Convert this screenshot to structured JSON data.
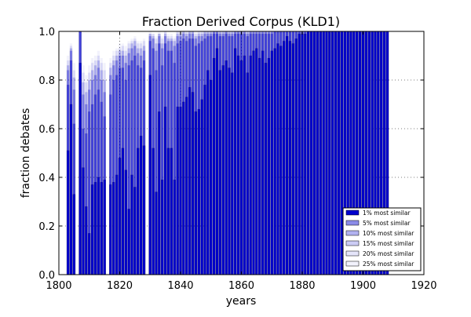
{
  "chart_data": {
    "type": "bar",
    "title": "Fraction Derived Corpus (KLD1)",
    "xlabel": "years",
    "ylabel": "fraction debates",
    "xlim": [
      1800,
      1920
    ],
    "ylim": [
      0.0,
      1.0
    ],
    "xticks": [
      1800,
      1820,
      1840,
      1860,
      1880,
      1900,
      1920
    ],
    "yticks": [
      0.0,
      0.2,
      0.4,
      0.6,
      0.8,
      1.0
    ],
    "xtick_labels": [
      "1800",
      "1820",
      "1840",
      "1860",
      "1880",
      "1900",
      "1920"
    ],
    "ytick_labels": [
      "0.0",
      "0.2",
      "0.4",
      "0.6",
      "0.8",
      "1.0"
    ],
    "grid": "dotted",
    "legend_position": "lower-right",
    "x": [
      1803,
      1804,
      1805,
      1806,
      1807,
      1808,
      1809,
      1810,
      1811,
      1812,
      1813,
      1814,
      1815,
      1816,
      1817,
      1818,
      1819,
      1820,
      1821,
      1822,
      1823,
      1824,
      1825,
      1826,
      1827,
      1828,
      1829,
      1830,
      1831,
      1832,
      1833,
      1834,
      1835,
      1836,
      1837,
      1838,
      1839,
      1840,
      1841,
      1842,
      1843,
      1844,
      1845,
      1846,
      1847,
      1848,
      1849,
      1850,
      1851,
      1852,
      1853,
      1854,
      1855,
      1856,
      1857,
      1858,
      1859,
      1860,
      1861,
      1862,
      1863,
      1864,
      1865,
      1866,
      1867,
      1868,
      1869,
      1870,
      1871,
      1872,
      1873,
      1874,
      1875,
      1876,
      1877,
      1878,
      1879,
      1880,
      1881,
      1882,
      1883,
      1884,
      1885,
      1886,
      1887,
      1888,
      1889,
      1890,
      1891,
      1892,
      1893,
      1894,
      1895,
      1896,
      1897,
      1898,
      1899,
      1900,
      1901,
      1902,
      1903,
      1904,
      1905,
      1906,
      1907,
      1908
    ],
    "series": [
      {
        "name": "1% most similar",
        "color": "#0000cc",
        "alpha": 1.0,
        "values": [
          0.51,
          0.7,
          0.33,
          0.0,
          0.87,
          0.44,
          0.28,
          0.17,
          0.37,
          0.38,
          0.4,
          0.38,
          0.39,
          0.0,
          0.37,
          0.38,
          0.41,
          0.48,
          0.52,
          0.43,
          0.27,
          0.41,
          0.36,
          0.52,
          0.57,
          0.53,
          0.0,
          0.82,
          0.52,
          0.34,
          0.67,
          0.39,
          0.69,
          0.52,
          0.52,
          0.39,
          0.69,
          0.69,
          0.71,
          0.73,
          0.77,
          0.75,
          0.67,
          0.68,
          0.72,
          0.78,
          0.84,
          0.8,
          0.89,
          0.93,
          0.84,
          0.86,
          0.88,
          0.85,
          0.83,
          0.93,
          0.9,
          0.88,
          0.9,
          0.83,
          0.9,
          0.92,
          0.93,
          0.89,
          0.92,
          0.87,
          0.89,
          0.92,
          0.93,
          0.95,
          0.94,
          0.96,
          0.98,
          0.96,
          0.95,
          0.97,
          0.99,
          0.99,
          0.99,
          1.0,
          1.0,
          1.0,
          1.0,
          1.0,
          1.0,
          1.0,
          1.0,
          1.0,
          1.0,
          1.0,
          1.0,
          1.0,
          1.0,
          1.0,
          1.0,
          1.0,
          1.0,
          1.0,
          1.0,
          1.0,
          1.0,
          1.0,
          1.0,
          1.0,
          1.0,
          1.0
        ]
      },
      {
        "name": "5% most similar",
        "color": "#0000cc",
        "alpha": 0.45,
        "values": [
          0.78,
          0.88,
          0.62,
          0.0,
          1.0,
          0.6,
          0.58,
          0.67,
          0.7,
          0.74,
          0.76,
          0.71,
          0.65,
          0.0,
          0.74,
          0.8,
          0.82,
          0.85,
          0.85,
          0.8,
          0.86,
          0.88,
          0.9,
          0.86,
          0.85,
          0.88,
          0.0,
          0.96,
          0.93,
          0.84,
          0.95,
          0.86,
          0.95,
          0.92,
          0.92,
          0.87,
          0.95,
          0.96,
          0.97,
          0.96,
          0.97,
          0.97,
          0.94,
          0.95,
          0.96,
          0.97,
          0.98,
          0.98,
          0.99,
          0.99,
          0.98,
          0.98,
          0.99,
          0.98,
          0.98,
          0.99,
          0.99,
          0.99,
          0.99,
          0.98,
          0.99,
          0.99,
          0.99,
          0.99,
          0.99,
          0.99,
          0.99,
          0.99,
          1.0,
          1.0,
          1.0,
          1.0,
          1.0,
          1.0,
          1.0,
          1.0,
          1.0,
          1.0,
          1.0,
          1.0,
          1.0,
          1.0,
          1.0,
          1.0,
          1.0,
          1.0,
          1.0,
          1.0,
          1.0,
          1.0,
          1.0,
          1.0,
          1.0,
          1.0,
          1.0,
          1.0,
          1.0,
          1.0,
          1.0,
          1.0,
          1.0,
          1.0,
          1.0,
          1.0,
          1.0,
          1.0
        ]
      },
      {
        "name": "10% most similar",
        "color": "#0000cc",
        "alpha": 0.3,
        "values": [
          0.84,
          0.92,
          0.76,
          0.0,
          1.0,
          0.74,
          0.7,
          0.76,
          0.8,
          0.82,
          0.85,
          0.8,
          0.75,
          0.0,
          0.82,
          0.86,
          0.88,
          0.9,
          0.9,
          0.87,
          0.91,
          0.93,
          0.94,
          0.91,
          0.9,
          0.92,
          0.0,
          0.98,
          0.97,
          0.92,
          0.98,
          0.93,
          0.98,
          0.96,
          0.96,
          0.94,
          0.98,
          0.98,
          0.99,
          0.98,
          0.99,
          0.99,
          0.97,
          0.98,
          0.98,
          0.99,
          0.99,
          0.99,
          1.0,
          1.0,
          0.99,
          0.99,
          1.0,
          0.99,
          0.99,
          1.0,
          1.0,
          1.0,
          1.0,
          0.99,
          1.0,
          1.0,
          1.0,
          1.0,
          1.0,
          1.0,
          1.0,
          1.0,
          1.0,
          1.0,
          1.0,
          1.0,
          1.0,
          1.0,
          1.0,
          1.0,
          1.0,
          1.0,
          1.0,
          1.0,
          1.0,
          1.0,
          1.0,
          1.0,
          1.0,
          1.0,
          1.0,
          1.0,
          1.0,
          1.0,
          1.0,
          1.0,
          1.0,
          1.0,
          1.0,
          1.0,
          1.0,
          1.0,
          1.0,
          1.0,
          1.0,
          1.0,
          1.0,
          1.0,
          1.0,
          1.0
        ]
      },
      {
        "name": "15% most similar",
        "color": "#0000cc",
        "alpha": 0.2,
        "values": [
          0.86,
          0.93,
          0.81,
          0.0,
          1.0,
          0.79,
          0.75,
          0.8,
          0.84,
          0.86,
          0.88,
          0.84,
          0.8,
          0.0,
          0.85,
          0.88,
          0.9,
          0.92,
          0.92,
          0.9,
          0.93,
          0.95,
          0.96,
          0.93,
          0.93,
          0.94,
          0.0,
          0.99,
          0.98,
          0.95,
          0.99,
          0.95,
          0.99,
          0.97,
          0.97,
          0.96,
          0.99,
          0.99,
          1.0,
          0.99,
          1.0,
          1.0,
          0.98,
          0.99,
          0.99,
          1.0,
          1.0,
          1.0,
          1.0,
          1.0,
          1.0,
          1.0,
          1.0,
          1.0,
          1.0,
          1.0,
          1.0,
          1.0,
          1.0,
          1.0,
          1.0,
          1.0,
          1.0,
          1.0,
          1.0,
          1.0,
          1.0,
          1.0,
          1.0,
          1.0,
          1.0,
          1.0,
          1.0,
          1.0,
          1.0,
          1.0,
          1.0,
          1.0,
          1.0,
          1.0,
          1.0,
          1.0,
          1.0,
          1.0,
          1.0,
          1.0,
          1.0,
          1.0,
          1.0,
          1.0,
          1.0,
          1.0,
          1.0,
          1.0,
          1.0,
          1.0,
          1.0,
          1.0,
          1.0,
          1.0,
          1.0,
          1.0,
          1.0,
          1.0,
          1.0,
          1.0
        ]
      },
      {
        "name": "20% most similar",
        "color": "#0000cc",
        "alpha": 0.1,
        "values": [
          0.88,
          0.94,
          0.84,
          0.0,
          1.0,
          0.83,
          0.79,
          0.83,
          0.87,
          0.88,
          0.9,
          0.87,
          0.84,
          0.0,
          0.87,
          0.9,
          0.92,
          0.93,
          0.94,
          0.92,
          0.95,
          0.96,
          0.97,
          0.95,
          0.95,
          0.96,
          0.0,
          0.99,
          0.99,
          0.97,
          0.99,
          0.97,
          1.0,
          0.98,
          0.98,
          0.97,
          1.0,
          1.0,
          1.0,
          1.0,
          1.0,
          1.0,
          0.99,
          1.0,
          1.0,
          1.0,
          1.0,
          1.0,
          1.0,
          1.0,
          1.0,
          1.0,
          1.0,
          1.0,
          1.0,
          1.0,
          1.0,
          1.0,
          1.0,
          1.0,
          1.0,
          1.0,
          1.0,
          1.0,
          1.0,
          1.0,
          1.0,
          1.0,
          1.0,
          1.0,
          1.0,
          1.0,
          1.0,
          1.0,
          1.0,
          1.0,
          1.0,
          1.0,
          1.0,
          1.0,
          1.0,
          1.0,
          1.0,
          1.0,
          1.0,
          1.0,
          1.0,
          1.0,
          1.0,
          1.0,
          1.0,
          1.0,
          1.0,
          1.0,
          1.0,
          1.0,
          1.0,
          1.0,
          1.0,
          1.0,
          1.0,
          1.0,
          1.0,
          1.0,
          1.0,
          1.0
        ]
      },
      {
        "name": "25% most similar",
        "color": "#0000cc",
        "alpha": 0.05,
        "values": [
          0.9,
          0.95,
          0.87,
          0.0,
          1.0,
          0.86,
          0.82,
          0.86,
          0.89,
          0.9,
          0.92,
          0.89,
          0.87,
          0.0,
          0.89,
          0.92,
          0.93,
          0.95,
          0.95,
          0.94,
          0.96,
          0.97,
          0.98,
          0.96,
          0.96,
          0.97,
          0.0,
          1.0,
          0.99,
          0.98,
          1.0,
          0.98,
          1.0,
          0.99,
          0.99,
          0.98,
          1.0,
          1.0,
          1.0,
          1.0,
          1.0,
          1.0,
          1.0,
          1.0,
          1.0,
          1.0,
          1.0,
          1.0,
          1.0,
          1.0,
          1.0,
          1.0,
          1.0,
          1.0,
          1.0,
          1.0,
          1.0,
          1.0,
          1.0,
          1.0,
          1.0,
          1.0,
          1.0,
          1.0,
          1.0,
          1.0,
          1.0,
          1.0,
          1.0,
          1.0,
          1.0,
          1.0,
          1.0,
          1.0,
          1.0,
          1.0,
          1.0,
          1.0,
          1.0,
          1.0,
          1.0,
          1.0,
          1.0,
          1.0,
          1.0,
          1.0,
          1.0,
          1.0,
          1.0,
          1.0,
          1.0,
          1.0,
          1.0,
          1.0,
          1.0,
          1.0,
          1.0,
          1.0,
          1.0,
          1.0,
          1.0,
          1.0,
          1.0,
          1.0,
          1.0,
          1.0
        ]
      }
    ]
  }
}
